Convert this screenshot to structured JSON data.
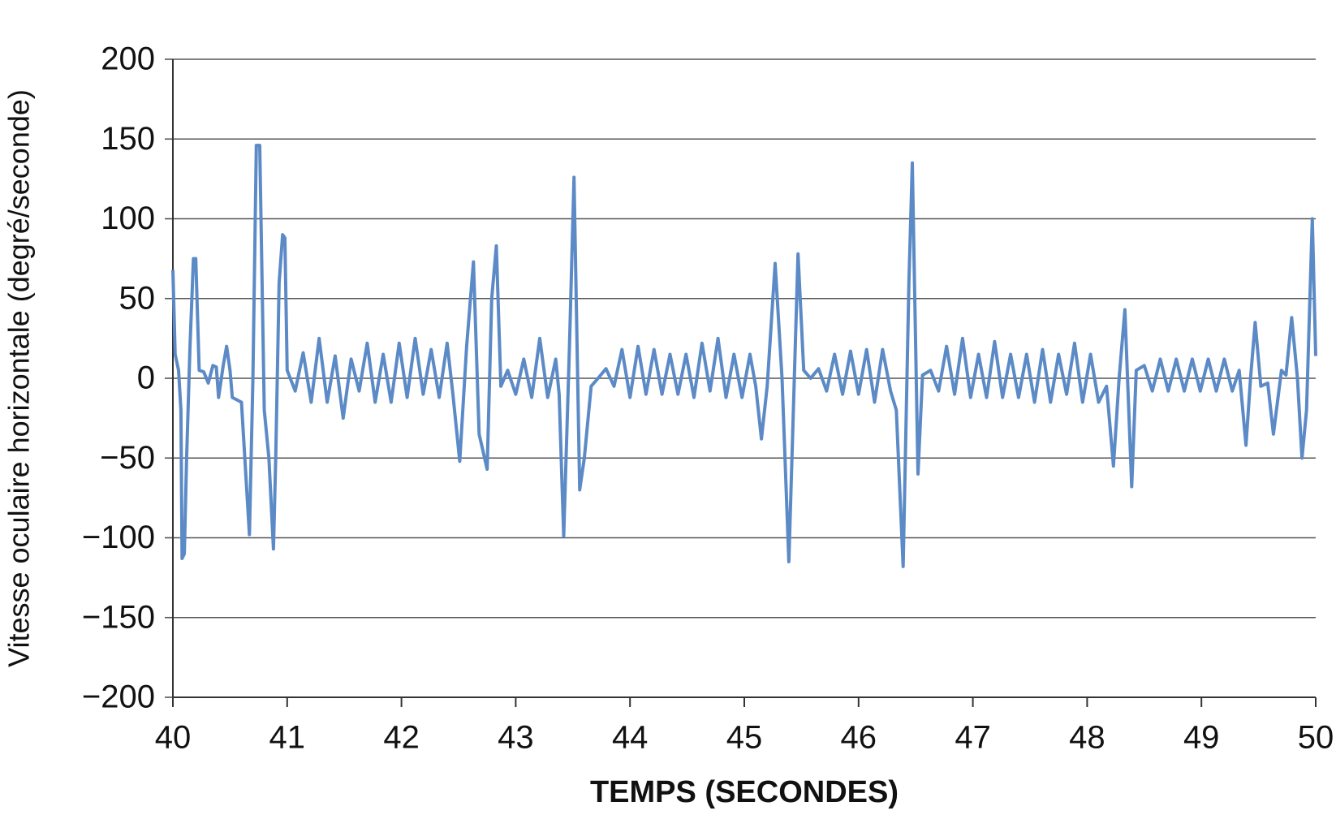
{
  "chart_data": {
    "type": "line",
    "x_label": "TEMPS (SECONDES)",
    "y_label": "Vitesse oculaire horizontale (degré/seconde)",
    "color": "#5b8ac6",
    "grid": true,
    "xlim": [
      40,
      50
    ],
    "xticks": [
      40,
      41,
      42,
      43,
      44,
      45,
      46,
      47,
      48,
      49,
      50
    ],
    "ylim": [
      -200,
      200
    ],
    "yticks": [
      {
        "value": -200,
        "label": "−200"
      },
      {
        "value": -150,
        "label": "−150"
      },
      {
        "value": -100,
        "label": "−100"
      },
      {
        "value": -50,
        "label": "−50"
      },
      0,
      50,
      100,
      150,
      200
    ],
    "x": [
      40,
      40.02,
      40.05,
      40.07,
      40.08,
      40.1,
      40.12,
      40.15,
      40.18,
      40.2,
      40.23,
      40.27,
      40.31,
      40.35,
      40.38,
      40.4,
      40.44,
      40.47,
      40.5,
      40.52,
      40.6,
      40.67,
      40.7,
      40.73,
      40.76,
      40.8,
      40.84,
      40.88,
      40.9,
      40.93,
      40.96,
      40.98,
      41.0,
      41.07,
      41.14,
      41.21,
      41.28,
      41.35,
      41.42,
      41.49,
      41.56,
      41.63,
      41.7,
      41.77,
      41.84,
      41.91,
      41.98,
      42.05,
      42.12,
      42.19,
      42.26,
      42.33,
      42.4,
      42.45,
      42.51,
      42.57,
      42.63,
      42.68,
      42.75,
      42.79,
      42.83,
      42.87,
      42.93,
      43.0,
      43.07,
      43.14,
      43.21,
      43.28,
      43.35,
      43.38,
      43.42,
      43.47,
      43.51,
      43.56,
      43.6,
      43.66,
      43.72,
      43.79,
      43.86,
      43.93,
      44.0,
      44.07,
      44.14,
      44.21,
      44.28,
      44.35,
      44.42,
      44.49,
      44.56,
      44.63,
      44.7,
      44.77,
      44.84,
      44.91,
      44.98,
      45.05,
      45.1,
      45.15,
      45.2,
      45.27,
      45.33,
      45.39,
      45.47,
      45.52,
      45.58,
      45.65,
      45.72,
      45.79,
      45.86,
      45.93,
      46.0,
      46.07,
      46.14,
      46.21,
      46.28,
      46.33,
      46.39,
      46.44,
      46.47,
      46.52,
      46.56,
      46.63,
      46.7,
      46.77,
      46.84,
      46.91,
      46.98,
      47.05,
      47.12,
      47.19,
      47.26,
      47.33,
      47.4,
      47.47,
      47.54,
      47.61,
      47.68,
      47.75,
      47.82,
      47.89,
      47.96,
      48.03,
      48.1,
      48.17,
      48.23,
      48.28,
      48.33,
      48.39,
      48.43,
      48.5,
      48.57,
      48.64,
      48.71,
      48.78,
      48.85,
      48.92,
      48.99,
      49.06,
      49.13,
      49.2,
      49.27,
      49.33,
      49.39,
      49.43,
      49.47,
      49.52,
      49.58,
      49.63,
      49.7,
      49.74,
      49.79,
      49.84,
      49.88,
      49.92,
      49.97,
      50.0
    ],
    "values": [
      68,
      15,
      5,
      -20,
      -113,
      -110,
      -50,
      20,
      75,
      75,
      5,
      4,
      -3,
      8,
      7,
      -12,
      8,
      20,
      5,
      -12,
      -15,
      -98,
      0,
      146,
      146,
      -20,
      -50,
      -107,
      -50,
      60,
      90,
      88,
      5,
      -8,
      16,
      -15,
      25,
      -15,
      14,
      -25,
      12,
      -8,
      22,
      -15,
      15,
      -15,
      22,
      -12,
      25,
      -10,
      18,
      -12,
      22,
      -10,
      -52,
      20,
      73,
      -35,
      -57,
      50,
      83,
      -5,
      5,
      -10,
      12,
      -12,
      25,
      -12,
      12,
      -10,
      -99,
      20,
      126,
      -70,
      -50,
      -5,
      0,
      6,
      -5,
      18,
      -12,
      20,
      -10,
      18,
      -10,
      15,
      -10,
      15,
      -12,
      22,
      -8,
      25,
      -12,
      15,
      -12,
      15,
      -5,
      -38,
      -5,
      72,
      0,
      -115,
      78,
      5,
      0,
      6,
      -8,
      15,
      -10,
      17,
      -10,
      18,
      -15,
      18,
      -8,
      -20,
      -118,
      60,
      135,
      -60,
      2,
      5,
      -8,
      20,
      -10,
      25,
      -12,
      15,
      -12,
      23,
      -12,
      15,
      -12,
      15,
      -15,
      18,
      -15,
      15,
      -10,
      22,
      -15,
      15,
      -15,
      -5,
      -55,
      0,
      43,
      -68,
      5,
      8,
      -8,
      12,
      -8,
      12,
      -8,
      12,
      -8,
      12,
      -8,
      12,
      -8,
      5,
      -42,
      0,
      35,
      -5,
      -3,
      -35,
      5,
      2,
      38,
      0,
      -50,
      -20,
      100,
      14
    ]
  }
}
